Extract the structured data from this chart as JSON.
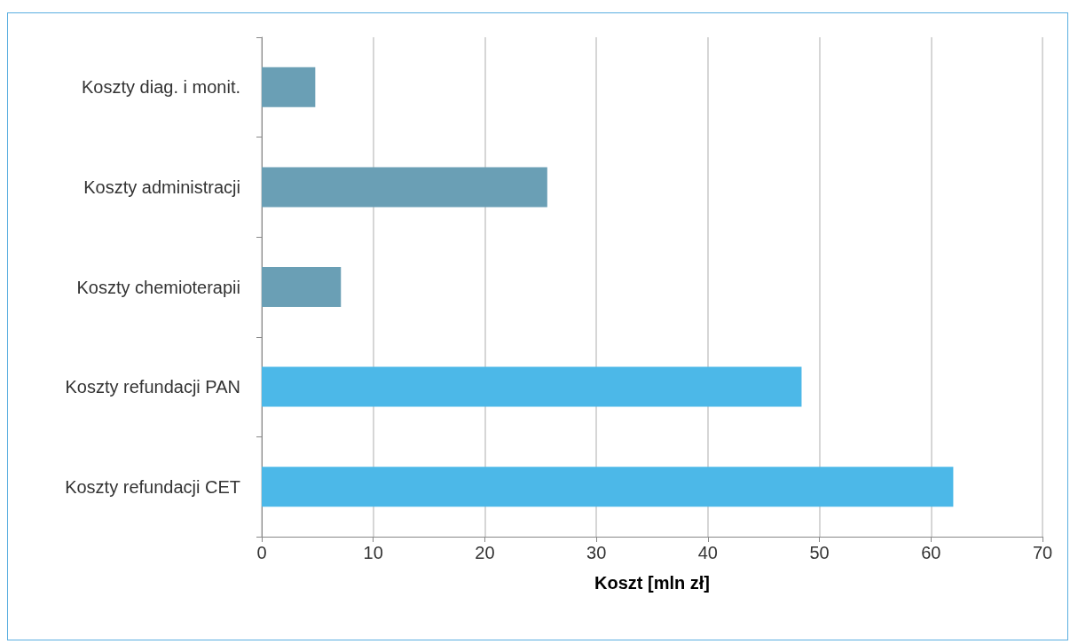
{
  "chart_data": {
    "type": "bar",
    "orientation": "horizontal",
    "xlabel": "Koszt [mln zł]",
    "categories": [
      "Koszty diag. i monit.",
      "Koszty administracji",
      "Koszty chemioterapii",
      "Koszty refundacji PAN",
      "Koszty refundacji CET"
    ],
    "values": [
      4.8,
      25.6,
      7.1,
      48.4,
      62.0
    ],
    "colors": [
      "#6a9fb5",
      "#6a9fb5",
      "#6a9fb5",
      "#4cb8e8",
      "#4cb8e8"
    ],
    "xlim": [
      0,
      70
    ],
    "xticks": [
      0,
      10,
      20,
      30,
      40,
      50,
      60,
      70
    ],
    "grid": "x"
  }
}
